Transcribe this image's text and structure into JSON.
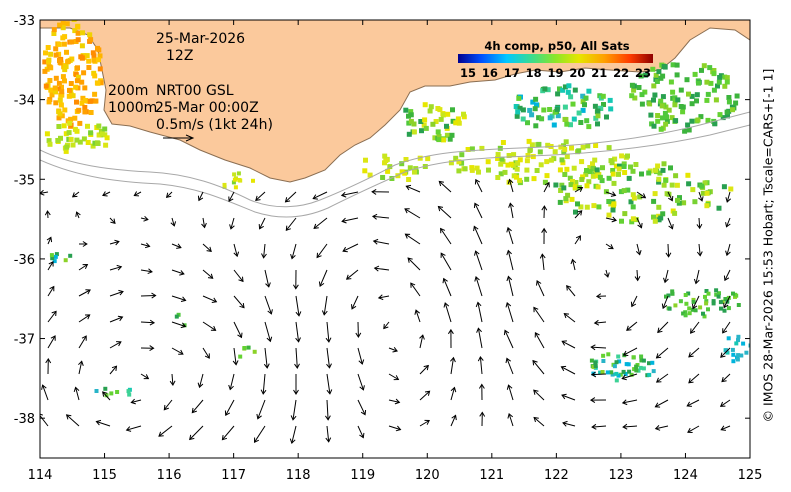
{
  "map": {
    "lon_range": [
      114,
      125
    ],
    "lat_range": [
      -38.5,
      -33
    ],
    "lon_ticks": [
      "114",
      "115",
      "116",
      "117",
      "118",
      "119",
      "120",
      "121",
      "122",
      "123",
      "124",
      "125"
    ],
    "lat_ticks": [
      "-33",
      "-34",
      "-35",
      "-36",
      "-37",
      "-38"
    ]
  },
  "annotations": {
    "date": "25-Mar-2026",
    "hour": "12Z",
    "contour_200": "200m",
    "contour_1000": "1000m",
    "product": "NRT00 GSL",
    "product_time": "25-Mar 00:00Z",
    "scale_label": "0.5m/s (1kt 24h)"
  },
  "colorbar": {
    "title": "4h comp, p50, All Sats",
    "ticks": [
      "15",
      "16",
      "17",
      "18",
      "19",
      "20",
      "21",
      "22",
      "23"
    ]
  },
  "credit": "© IMOS 28-Mar-2026 15:53 Hobart; Tscale=CARS+[-1 1]",
  "colors": {
    "land": "#fbc99c",
    "coast": "#8a6e52",
    "bathy": "#a8a8a8",
    "arrow": "#000000"
  }
}
